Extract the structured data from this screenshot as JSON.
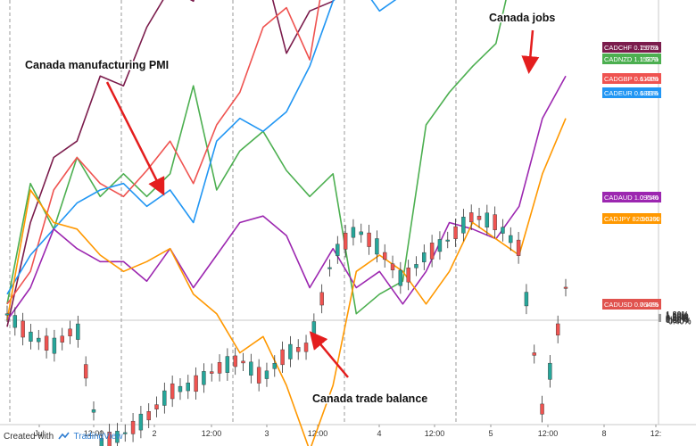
{
  "chart_data": {
    "type": "line",
    "y_tick_labels": [
      "1.80%",
      "1.60%",
      "1.40%",
      "1.20%",
      "1.00%",
      "0.80%",
      "0.60%",
      "0.40%",
      "0.20%",
      "0.00%",
      "-0.20%",
      "-0.40%"
    ],
    "ylim": [
      -0.5,
      1.9
    ],
    "x_tick_labels": [
      "Jul",
      "12:00",
      "2",
      "12:00",
      "3",
      "12:00",
      "4",
      "12:00",
      "5",
      "12:00",
      "8",
      "12:"
    ],
    "grid": true,
    "series": [
      {
        "name": "CADCHF",
        "last_price": "0.75763",
        "change": "1.67%",
        "color": "#7b1c4c",
        "values": [
          -0.02,
          0.3,
          0.5,
          0.55,
          0.75,
          0.72,
          0.9,
          1.02,
          0.98,
          1.2,
          1.08,
          1.1,
          0.82,
          0.95,
          0.98,
          1.28,
          1.42,
          1.38,
          1.25,
          1.32,
          1.3,
          1.25,
          1.8,
          1.86,
          1.67
        ]
      },
      {
        "name": "CADNZD",
        "last_price": "1.15370",
        "change": "1.60%",
        "color": "#4caf50",
        "values": [
          0.05,
          0.42,
          0.28,
          0.5,
          0.38,
          0.45,
          0.38,
          0.45,
          0.72,
          0.4,
          0.52,
          0.58,
          0.46,
          0.38,
          0.45,
          0.02,
          0.08,
          0.12,
          0.6,
          0.7,
          0.78,
          0.85,
          1.16,
          1.48,
          1.6
        ]
      },
      {
        "name": "CADGBP",
        "last_price": "0.61000",
        "change": "1.48%",
        "color": "#ef5350",
        "values": [
          0.05,
          0.15,
          0.4,
          0.5,
          0.42,
          0.38,
          0.46,
          0.55,
          0.42,
          0.6,
          0.7,
          0.9,
          0.96,
          0.8,
          1.22,
          1.3,
          1.2,
          1.12,
          1.24,
          1.3,
          1.25,
          1.2,
          1.38,
          1.58,
          1.48
        ]
      },
      {
        "name": "CADEUR",
        "last_price": "0.68116",
        "change": "1.39%",
        "color": "#2196f3",
        "values": [
          0.08,
          0.2,
          0.28,
          0.36,
          0.4,
          0.42,
          0.35,
          0.4,
          0.3,
          0.55,
          0.62,
          0.58,
          0.64,
          0.78,
          0.98,
          1.05,
          0.95,
          1.0,
          1.1,
          1.05,
          1.08,
          1.1,
          1.25,
          1.42,
          1.39
        ]
      },
      {
        "name": "CADAUD",
        "last_price": "1.09540",
        "change": "0.75%",
        "color": "#9c27b0",
        "values": [
          0.0,
          0.1,
          0.28,
          0.22,
          0.18,
          0.18,
          0.12,
          0.22,
          0.1,
          0.2,
          0.3,
          0.32,
          0.26,
          0.1,
          0.22,
          0.1,
          0.15,
          0.05,
          0.15,
          0.3,
          0.28,
          0.25,
          0.35,
          0.62,
          0.75
        ]
      },
      {
        "name": "CADJPY",
        "last_price": "82.90300",
        "change": "0.62%",
        "color": "#ff9800",
        "values": [
          0.0,
          0.4,
          0.3,
          0.28,
          0.2,
          0.15,
          0.18,
          0.22,
          0.08,
          0.02,
          -0.1,
          -0.05,
          -0.2,
          -0.4,
          -0.2,
          0.15,
          0.2,
          0.15,
          0.05,
          0.15,
          0.3,
          0.25,
          0.2,
          0.45,
          0.62
        ]
      },
      {
        "name": "CADUSD",
        "last_price": "0.76465",
        "change": "0.10%",
        "color": "#e0524e",
        "style": "candles",
        "values": [
          0.02,
          -0.05,
          -0.08,
          -0.02,
          -0.38,
          -0.35,
          -0.3,
          -0.22,
          -0.2,
          -0.15,
          -0.12,
          -0.18,
          -0.1,
          -0.08,
          0.2,
          0.28,
          0.22,
          0.12,
          0.2,
          0.25,
          0.32,
          0.3,
          0.22,
          -0.28,
          0.1
        ]
      }
    ],
    "annotations": [
      {
        "text": "Canada manufacturing PMI"
      },
      {
        "text": "Canada jobs"
      },
      {
        "text": "Canada trade balance"
      }
    ]
  },
  "footer": {
    "created_with": "Created with",
    "brand": "TradingView"
  }
}
